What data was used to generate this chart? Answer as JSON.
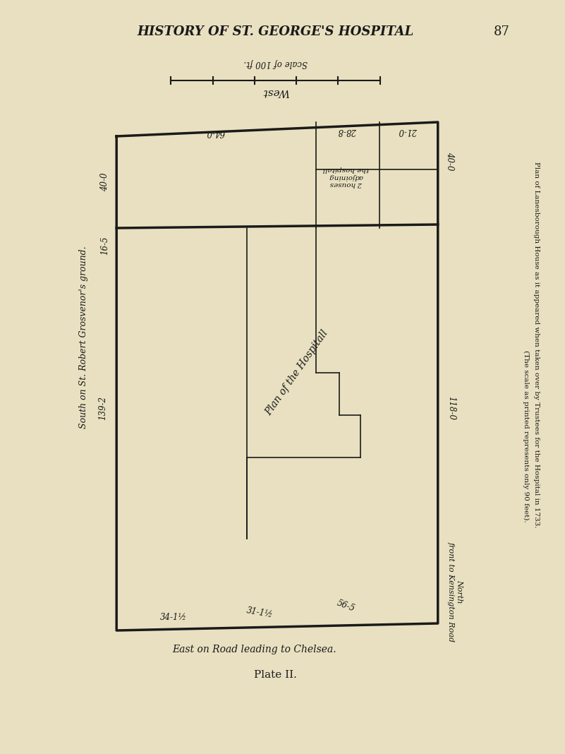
{
  "bg_color": "#e8e0c0",
  "line_color": "#1a1a1a",
  "title": "HISTORY OF ST. GEORGE'S HOSPITAL",
  "page_num": "87",
  "plate_label": "Plate II.",
  "caption": "Plan of Lanesborough House as it appeared when taken over by Trustees for the Hospital in 1733.",
  "caption2": "(The scale as printed represents only 90 feet).",
  "side_text": "Plan of Lanesborough House as it appeared when taken over by Trustees for the Hospital in 1733.",
  "side_text2": "(The scale as printed represents only 90 feet).",
  "scale_label": "Scale of 100 ft.",
  "west_label": "West",
  "east_label": "East on Road leading to Chelsea.",
  "south_label": "South on St. Robert Grosvenor's ground.",
  "north_label": "North\nfront to Kensington Road",
  "plan_label": "Plan of the Hospitall",
  "houses_label": "2 houses\nadjoining\nthe hospitall",
  "dim_64": "64-0",
  "dim_40_left": "40-0",
  "dim_28": "28-8",
  "dim_21": "21-0",
  "dim_40_right": "40-0",
  "dim_16": "16-5",
  "dim_139": "139-2",
  "dim_118": "118-0",
  "dim_56": "56-5",
  "dim_31": "31-1½",
  "dim_34": "34-1½"
}
